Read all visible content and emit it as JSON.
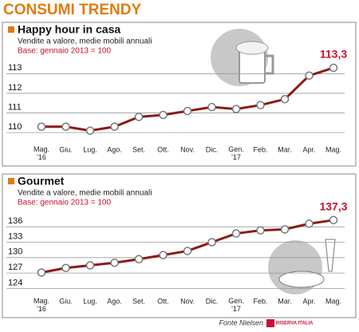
{
  "title": "CONSUMI TRENDY",
  "source": "Fonte Nielsen",
  "logo": "RISERVA ITALIA",
  "chart_data": [
    {
      "type": "line",
      "title": "Happy hour in casa",
      "subtitle": "Vendite a valore, medie mobili annuali",
      "note": "Base: gennaio 2013 = 100",
      "categories": [
        "Mag. '16",
        "Giu.",
        "Lug.",
        "Ago.",
        "Set.",
        "Ott.",
        "Nov.",
        "Dic.",
        "Gen. '17",
        "Feb.",
        "Mar.",
        "Apr.",
        "Mag."
      ],
      "values": [
        110.3,
        110.3,
        110.1,
        110.3,
        110.8,
        110.9,
        111.1,
        111.3,
        111.2,
        111.4,
        111.7,
        112.9,
        113.3
      ],
      "value_labels": [
        null,
        null,
        null,
        null,
        null,
        null,
        null,
        null,
        null,
        null,
        null,
        null,
        "113,3"
      ],
      "color": "#8b1a1a",
      "ylim": [
        109.6,
        113.5
      ],
      "yticks": [
        110,
        111,
        112,
        113
      ],
      "grid": true
    },
    {
      "type": "line",
      "title": "Gourmet",
      "subtitle": "Vendite a valore, medie mobili annuali",
      "note": "Base: gennaio 2013 = 100",
      "categories": [
        "Mag. '16",
        "Giu.",
        "Lug.",
        "Ago.",
        "Set.",
        "Ott.",
        "Nov.",
        "Dic.",
        "Gen. '17",
        "Feb.",
        "Mar.",
        "Apr.",
        "Mag."
      ],
      "values": [
        127.1,
        128.0,
        128.5,
        129.0,
        129.7,
        130.5,
        131.3,
        133.0,
        134.7,
        135.3,
        135.5,
        136.6,
        137.3
      ],
      "value_labels": [
        null,
        null,
        null,
        null,
        null,
        null,
        null,
        null,
        null,
        null,
        null,
        null,
        "137,3"
      ],
      "color": "#8b1a1a",
      "ylim": [
        123.3,
        138.2
      ],
      "yticks": [
        124,
        127,
        130,
        133,
        136
      ],
      "grid": true
    }
  ]
}
